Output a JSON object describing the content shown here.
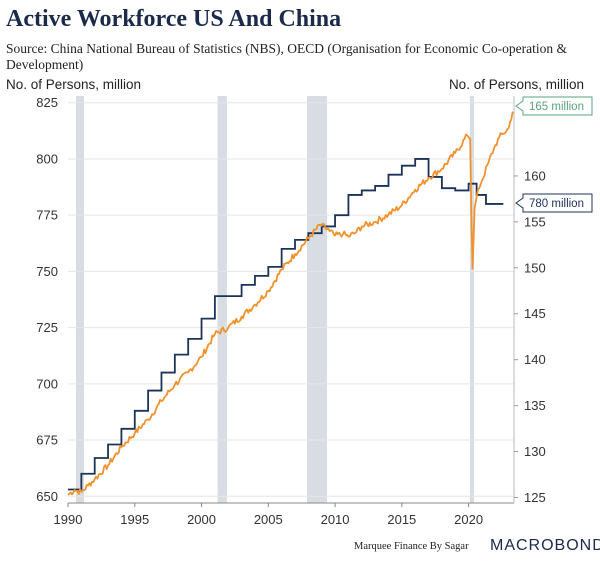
{
  "header": {
    "title": "Active Workforce US And China",
    "source": "Source: China National Bureau of Statistics (NBS), OECD (Organisation for Economic Co-operation & Development)"
  },
  "footer": {
    "credit": "Marquee Finance By Sagar",
    "brand": "MACROBOND"
  },
  "colors": {
    "china": "#1b3358",
    "us": "#f0922d",
    "us_callout": "#5aa37e",
    "recession": "#d8dce3",
    "grid": "#e6e6e6"
  },
  "chart_data": {
    "type": "line",
    "title": "Active Workforce US And China",
    "xlabel": "",
    "ylabel_left": "No. of Persons, million",
    "ylabel_right": "No. of Persons, million",
    "xlim": [
      1990,
      2023.4
    ],
    "ylim_left": [
      647,
      828
    ],
    "ylim_right": [
      124.4,
      168.7
    ],
    "xticks": [
      "1990",
      "1995",
      "2000",
      "2005",
      "2010",
      "2015",
      "2020"
    ],
    "yticks_left": [
      "650",
      "675",
      "700",
      "725",
      "750",
      "775",
      "800",
      "825"
    ],
    "yticks_right": [
      "125",
      "130",
      "135",
      "140",
      "145",
      "150",
      "155",
      "160"
    ],
    "recessions": [
      [
        1990.6,
        1991.2
      ],
      [
        2001.2,
        2001.9
      ],
      [
        2007.9,
        2009.4
      ],
      [
        2020.1,
        2020.4
      ]
    ],
    "series": [
      {
        "name": "China",
        "axis": "left",
        "callout": "780 million",
        "steps": [
          [
            1990,
            653
          ],
          [
            1991,
            660
          ],
          [
            1992,
            667
          ],
          [
            1993,
            673
          ],
          [
            1994,
            680
          ],
          [
            1995,
            688
          ],
          [
            1996,
            697
          ],
          [
            1997,
            705
          ],
          [
            1998,
            713
          ],
          [
            1999,
            720
          ],
          [
            2000,
            729
          ],
          [
            2001,
            739
          ],
          [
            2002,
            739
          ],
          [
            2003,
            744
          ],
          [
            2004,
            748
          ],
          [
            2005,
            752
          ],
          [
            2006,
            760
          ],
          [
            2007,
            764
          ],
          [
            2008,
            767
          ],
          [
            2009,
            770
          ],
          [
            2010,
            775
          ],
          [
            2011,
            784
          ],
          [
            2012,
            786
          ],
          [
            2013,
            788
          ],
          [
            2014,
            793
          ],
          [
            2015,
            797
          ],
          [
            2016,
            800
          ],
          [
            2017,
            792
          ],
          [
            2018,
            787
          ],
          [
            2019,
            786
          ],
          [
            2020,
            789
          ],
          [
            2020.6,
            784
          ],
          [
            2021.3,
            780
          ],
          [
            2022.1,
            780
          ]
        ]
      },
      {
        "name": "US",
        "axis": "right",
        "callout": "165 million",
        "points": [
          [
            1990,
            125.3
          ],
          [
            1990.5,
            125.8
          ],
          [
            1991,
            125.6
          ],
          [
            1991.5,
            126.3
          ],
          [
            1992,
            127.0
          ],
          [
            1993,
            128.5
          ],
          [
            1994,
            130.5
          ],
          [
            1995,
            132.0
          ],
          [
            1996,
            133.5
          ],
          [
            1997,
            135.5
          ],
          [
            1998,
            137.3
          ],
          [
            1999,
            138.6
          ],
          [
            2000,
            140.3
          ],
          [
            2001,
            142.8
          ],
          [
            2002,
            143.5
          ],
          [
            2003,
            144.7
          ],
          [
            2004,
            146.0
          ],
          [
            2005,
            147.5
          ],
          [
            2006,
            149.8
          ],
          [
            2007,
            151.5
          ],
          [
            2008,
            153.2
          ],
          [
            2008.9,
            154.7
          ],
          [
            2009.6,
            154.0
          ],
          [
            2010,
            153.5
          ],
          [
            2010.6,
            153.7
          ],
          [
            2011,
            153.4
          ],
          [
            2011.5,
            153.8
          ],
          [
            2012,
            154.5
          ],
          [
            2013,
            155.0
          ],
          [
            2014,
            155.8
          ],
          [
            2015,
            156.8
          ],
          [
            2016,
            158.5
          ],
          [
            2017,
            159.8
          ],
          [
            2018,
            160.8
          ],
          [
            2019,
            162.5
          ],
          [
            2019.9,
            164.4
          ],
          [
            2020.12,
            164.0
          ],
          [
            2020.2,
            156.0
          ],
          [
            2020.3,
            149.9
          ],
          [
            2020.45,
            156.5
          ],
          [
            2020.7,
            158.5
          ],
          [
            2021,
            159.5
          ],
          [
            2021.5,
            161.5
          ],
          [
            2021.9,
            163.0
          ],
          [
            2022.3,
            164.2
          ],
          [
            2022.6,
            164.6
          ],
          [
            2023.0,
            165.2
          ],
          [
            2023.3,
            167.0
          ]
        ]
      }
    ]
  }
}
